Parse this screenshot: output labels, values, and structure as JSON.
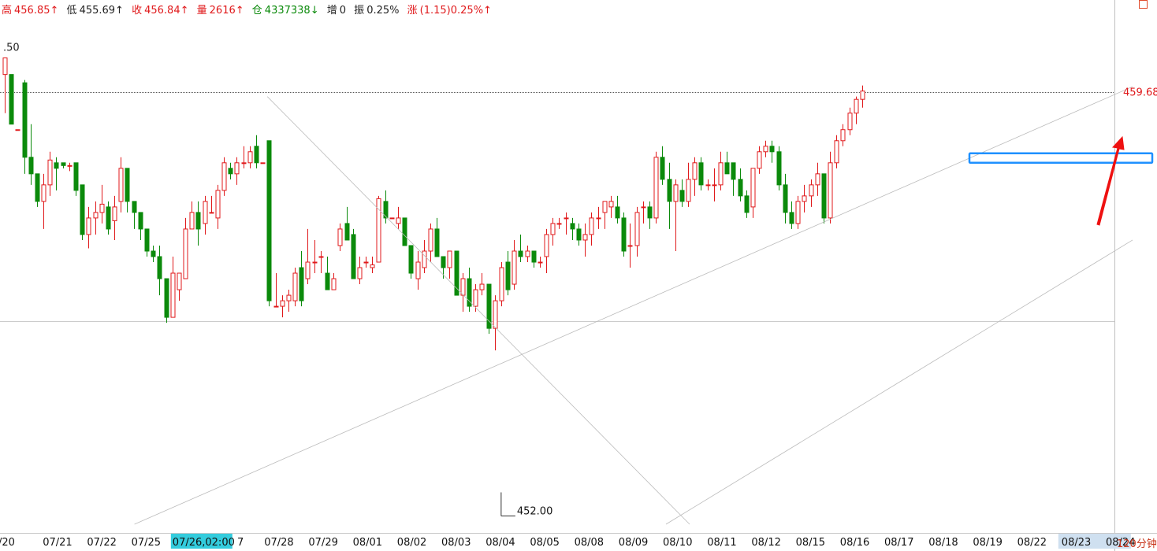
{
  "header": {
    "high_label": "高",
    "high_value": "456.85↑",
    "low_label": "低",
    "low_value": "455.69↑",
    "close_label": "收",
    "close_value": "456.84↑",
    "vol_label": "量",
    "vol_value": "2616↑",
    "oi_label": "仓",
    "oi_value": "4337338↓",
    "inc_label": "增",
    "inc_value": "0",
    "amp_label": "振",
    "amp_value": "0.25%",
    "chg_label": "涨",
    "chg_value": "(1.15)0.25%↑"
  },
  "period_label": "120分钟",
  "colors": {
    "up": "#e0191b",
    "down": "#0b8a0b",
    "highlight_box": "#1e90ff",
    "arrow": "#ee1111",
    "date_highlight": "#33ccdd"
  },
  "chart_data": {
    "type": "candlestick",
    "y_axis_label": ".50",
    "y_axis_value": 460.5,
    "ylim": [
      451.85,
      461.35
    ],
    "current_price": 459.68,
    "current_price_label": "459.68",
    "low_annotation": 452.0,
    "low_annotation_label": "452.00",
    "reference_line": 455.53,
    "x_labels": [
      "/20",
      "07/21",
      "07/22",
      "07/25",
      "07/26,02:00",
      "7",
      "07/28",
      "07/29",
      "08/01",
      "08/02",
      "08/03",
      "08/04",
      "08/05",
      "08/08",
      "08/09",
      "08/10",
      "08/11",
      "08/12",
      "08/15",
      "08/16",
      "08/17",
      "08/18",
      "08/19",
      "08/22",
      "08/23",
      "08/24"
    ],
    "x_label_highlight_index": 4,
    "x_label_shaded_index": 24,
    "candles_ohlc": [
      [
        460.0,
        460.2,
        459.3,
        460.3
      ],
      [
        460.0,
        460.0,
        459.1,
        459.1
      ],
      [
        459.0,
        459.0,
        459.0,
        459.0
      ],
      [
        459.85,
        459.9,
        458.2,
        458.5
      ],
      [
        458.5,
        459.1,
        458.0,
        458.2
      ],
      [
        458.2,
        458.2,
        457.6,
        457.7
      ],
      [
        457.7,
        458.2,
        457.2,
        458.0
      ],
      [
        458.0,
        458.6,
        457.8,
        458.45
      ],
      [
        458.4,
        458.5,
        457.9,
        458.3
      ],
      [
        458.4,
        458.4,
        458.3,
        458.35
      ],
      [
        458.35,
        458.4,
        458.25,
        458.35
      ],
      [
        458.4,
        458.4,
        457.8,
        457.9
      ],
      [
        458.0,
        458.0,
        457.0,
        457.1
      ],
      [
        457.1,
        457.6,
        456.85,
        457.4
      ],
      [
        457.4,
        457.7,
        457.1,
        457.5
      ],
      [
        457.5,
        458.0,
        457.3,
        457.65
      ],
      [
        457.6,
        457.7,
        457.1,
        457.2
      ],
      [
        457.35,
        457.8,
        457.0,
        457.6
      ],
      [
        457.7,
        458.5,
        457.5,
        458.3
      ],
      [
        458.3,
        458.3,
        457.5,
        457.7
      ],
      [
        457.7,
        457.7,
        457.2,
        457.5
      ],
      [
        457.5,
        457.5,
        457.0,
        457.2
      ],
      [
        457.2,
        457.2,
        456.7,
        456.8
      ],
      [
        456.8,
        456.9,
        456.6,
        456.7
      ],
      [
        456.7,
        456.9,
        456.0,
        456.3
      ],
      [
        456.3,
        456.3,
        455.5,
        455.6
      ],
      [
        455.6,
        456.7,
        455.6,
        456.4
      ],
      [
        456.1,
        456.4,
        455.9,
        456.4
      ],
      [
        456.3,
        457.4,
        456.3,
        457.2
      ],
      [
        457.2,
        457.7,
        457.2,
        457.5
      ],
      [
        457.5,
        457.7,
        456.9,
        457.2
      ],
      [
        457.3,
        457.8,
        457.1,
        457.7
      ],
      [
        457.5,
        457.8,
        457.5,
        457.5
      ],
      [
        457.4,
        458.0,
        457.2,
        457.9
      ],
      [
        457.9,
        458.5,
        457.8,
        458.4
      ],
      [
        458.3,
        458.4,
        458.1,
        458.2
      ],
      [
        458.2,
        458.5,
        458.0,
        458.4
      ],
      [
        458.4,
        458.7,
        458.3,
        458.4
      ],
      [
        458.4,
        458.7,
        458.3,
        458.6
      ],
      [
        458.7,
        458.9,
        458.3,
        458.4
      ],
      [
        458.4,
        458.4,
        458.4,
        458.4
      ],
      [
        458.8,
        458.8,
        455.8,
        455.9
      ],
      [
        455.8,
        456.4,
        455.8,
        455.8
      ],
      [
        455.8,
        456.0,
        455.6,
        455.9
      ],
      [
        455.9,
        456.1,
        455.7,
        456.0
      ],
      [
        455.9,
        456.5,
        455.8,
        456.4
      ],
      [
        456.5,
        456.8,
        455.8,
        455.9
      ],
      [
        456.3,
        457.2,
        456.2,
        456.6
      ],
      [
        456.6,
        457.0,
        456.4,
        456.6
      ],
      [
        456.7,
        456.8,
        456.4,
        456.7
      ],
      [
        456.4,
        456.7,
        456.1,
        456.1
      ],
      [
        456.1,
        456.4,
        456.1,
        456.3
      ],
      [
        456.9,
        457.3,
        456.8,
        457.2
      ],
      [
        457.3,
        457.6,
        457.0,
        457.0
      ],
      [
        457.1,
        457.2,
        456.3,
        456.3
      ],
      [
        456.3,
        456.7,
        456.2,
        456.5
      ],
      [
        456.6,
        456.7,
        456.5,
        456.6
      ],
      [
        456.5,
        456.7,
        456.4,
        456.55
      ],
      [
        456.6,
        457.8,
        456.6,
        457.75
      ],
      [
        457.7,
        457.9,
        457.3,
        457.4
      ],
      [
        457.4,
        457.4,
        457.4,
        457.4
      ],
      [
        457.3,
        457.6,
        457.2,
        457.4
      ],
      [
        457.4,
        457.4,
        456.9,
        456.9
      ],
      [
        456.9,
        456.9,
        456.3,
        456.4
      ],
      [
        456.3,
        456.8,
        456.1,
        456.6
      ],
      [
        456.5,
        457.0,
        456.4,
        456.8
      ],
      [
        456.8,
        457.3,
        456.6,
        457.2
      ],
      [
        457.2,
        457.4,
        456.7,
        456.7
      ],
      [
        456.7,
        456.7,
        456.3,
        456.5
      ],
      [
        456.5,
        456.8,
        456.3,
        456.8
      ],
      [
        456.8,
        456.8,
        456.0,
        456.0
      ],
      [
        456.0,
        456.4,
        455.7,
        456.3
      ],
      [
        456.3,
        456.5,
        455.7,
        455.8
      ],
      [
        455.8,
        456.2,
        455.7,
        456.1
      ],
      [
        456.1,
        456.4,
        456.0,
        456.2
      ],
      [
        456.2,
        456.2,
        455.3,
        455.4
      ],
      [
        455.4,
        456.0,
        455.0,
        455.9
      ],
      [
        455.9,
        456.6,
        455.8,
        456.5
      ],
      [
        456.6,
        456.8,
        456.0,
        456.1
      ],
      [
        456.2,
        457.0,
        456.1,
        456.8
      ],
      [
        456.8,
        457.1,
        456.6,
        456.7
      ],
      [
        456.7,
        456.9,
        456.6,
        456.8
      ],
      [
        456.8,
        456.8,
        456.5,
        456.6
      ],
      [
        456.6,
        456.7,
        456.5,
        456.6
      ],
      [
        456.7,
        457.2,
        456.4,
        457.1
      ],
      [
        457.1,
        457.4,
        456.9,
        457.3
      ],
      [
        457.3,
        457.4,
        457.2,
        457.3
      ],
      [
        457.4,
        457.5,
        457.1,
        457.4
      ],
      [
        457.3,
        457.4,
        457.0,
        457.2
      ],
      [
        457.2,
        457.3,
        456.9,
        457.0
      ],
      [
        457.0,
        457.3,
        456.7,
        457.1
      ],
      [
        457.1,
        457.5,
        456.9,
        457.4
      ],
      [
        457.4,
        457.6,
        457.2,
        457.4
      ],
      [
        457.5,
        457.7,
        457.2,
        457.7
      ],
      [
        457.6,
        457.8,
        457.4,
        457.7
      ],
      [
        457.6,
        457.8,
        457.3,
        457.4
      ],
      [
        457.4,
        457.5,
        456.7,
        456.8
      ],
      [
        456.9,
        457.3,
        456.5,
        456.9
      ],
      [
        456.9,
        457.6,
        456.7,
        457.5
      ],
      [
        457.6,
        457.7,
        457.3,
        457.6
      ],
      [
        457.6,
        457.7,
        457.2,
        457.4
      ],
      [
        457.4,
        458.6,
        457.3,
        458.5
      ],
      [
        458.5,
        458.7,
        458.0,
        458.1
      ],
      [
        458.1,
        458.4,
        457.2,
        457.7
      ],
      [
        457.7,
        458.1,
        456.8,
        458.0
      ],
      [
        457.9,
        458.1,
        457.6,
        457.7
      ],
      [
        457.7,
        458.4,
        457.6,
        458.1
      ],
      [
        458.1,
        458.5,
        457.8,
        458.4
      ],
      [
        458.4,
        458.5,
        457.9,
        458.0
      ],
      [
        458.0,
        458.1,
        457.9,
        458.0
      ],
      [
        458.0,
        458.3,
        457.7,
        458.0
      ],
      [
        458.0,
        458.6,
        457.9,
        458.4
      ],
      [
        458.4,
        458.6,
        458.2,
        458.2
      ],
      [
        458.4,
        458.4,
        457.8,
        458.1
      ],
      [
        458.1,
        458.3,
        457.7,
        457.8
      ],
      [
        457.8,
        457.9,
        457.4,
        457.5
      ],
      [
        457.6,
        458.3,
        457.4,
        458.3
      ],
      [
        458.3,
        458.7,
        458.2,
        458.6
      ],
      [
        458.6,
        458.8,
        458.5,
        458.7
      ],
      [
        458.7,
        458.8,
        458.4,
        458.6
      ],
      [
        458.6,
        458.7,
        457.9,
        458.0
      ],
      [
        458.0,
        458.2,
        457.3,
        457.5
      ],
      [
        457.5,
        457.7,
        457.2,
        457.3
      ],
      [
        457.3,
        457.8,
        457.2,
        457.7
      ],
      [
        457.7,
        458.0,
        457.5,
        457.8
      ],
      [
        457.8,
        458.1,
        457.6,
        458.0
      ],
      [
        458.0,
        458.4,
        457.8,
        458.2
      ],
      [
        458.2,
        458.2,
        457.3,
        457.4
      ],
      [
        457.4,
        458.6,
        457.3,
        458.4
      ],
      [
        458.4,
        458.9,
        458.3,
        458.8
      ],
      [
        458.8,
        459.1,
        458.7,
        459.0
      ],
      [
        459.0,
        459.4,
        458.9,
        459.3
      ],
      [
        459.3,
        459.6,
        459.1,
        459.55
      ],
      [
        459.55,
        459.8,
        459.4,
        459.7
      ]
    ],
    "trendlines": [
      {
        "from": [
          "07/28",
          459.6
        ],
        "to": [
          "08/10",
          451.85
        ]
      },
      {
        "from": [
          "07/25",
          451.85
        ],
        "to": [
          "08/24",
          459.78
        ]
      },
      {
        "from": [
          "08/10",
          451.85
        ],
        "to": [
          "08/24",
          457.0
        ]
      }
    ]
  }
}
